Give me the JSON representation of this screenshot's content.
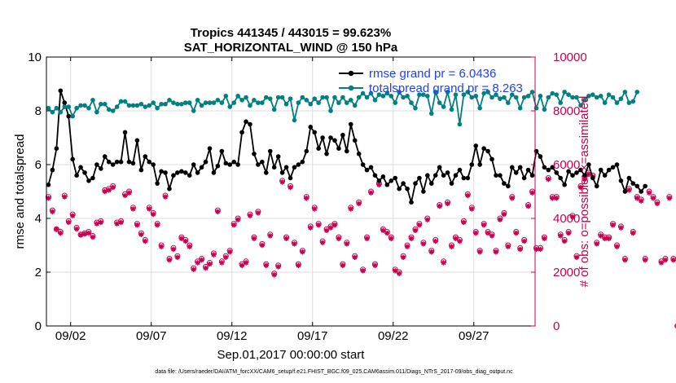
{
  "chart_data": {
    "type": "line",
    "title_line1": "Tropics 441345 / 443015 = 99.623%",
    "title_line2": "SAT_HORIZONTAL_WIND @ 150 hPa",
    "xlabel": "Sep.01,2017 00:00:00 start",
    "ylabel_left": "rmse and totalspread",
    "ylabel_right": "# of obs: o=possible; ×=assimilated",
    "footer": "data file: /Users/raeder/DAI/ATM_forcXX/CAM6_setup/f.e21.FHIST_BGC.f09_025.CAM6assim.011/Diags_NTrS_2017-09/obs_diag_output.nc",
    "xlim": [
      0.5,
      30.8
    ],
    "ylim_left": [
      0,
      10
    ],
    "ylim_right": [
      0,
      10000
    ],
    "x_ticks": [
      2,
      7,
      12,
      17,
      22,
      27
    ],
    "x_tick_labels": [
      "09/02",
      "09/07",
      "09/12",
      "09/17",
      "09/22",
      "09/27"
    ],
    "y_ticks_left": [
      "0",
      "2",
      "4",
      "6",
      "8",
      "10"
    ],
    "y_ticks_right": [
      "0",
      "2000",
      "4000",
      "6000",
      "8000",
      "10000"
    ],
    "legend": [
      "rmse grand pr = 6.0436",
      "totalspread grand pr = 8.263"
    ],
    "colors": {
      "rmse": "#000000",
      "spread": "#008080",
      "obs": "#c8004f",
      "grid": "#dddddd"
    },
    "series": [
      {
        "name": "rmse grand pr = 6.0436",
        "axis": "left",
        "x_start": 0.625,
        "dx": 0.25,
        "values": [
          5.25,
          5.8,
          6.6,
          8.75,
          8.3,
          7.8,
          6.2,
          5.6,
          5.9,
          5.7,
          5.4,
          5.5,
          6.0,
          5.85,
          6.3,
          6.1,
          6.0,
          6.1,
          6.1,
          7.2,
          6.1,
          6.05,
          6.9,
          5.8,
          6.3,
          6.1,
          6.0,
          5.3,
          5.75,
          5.7,
          5.1,
          5.6,
          5.7,
          5.75,
          5.7,
          5.6,
          6.0,
          5.7,
          5.9,
          6.1,
          6.6,
          5.7,
          5.95,
          6.5,
          6.05,
          6.0,
          6.1,
          6.0,
          7.2,
          7.6,
          7.5,
          6.4,
          6.0,
          6.1,
          5.7,
          6.5,
          5.9,
          6.3,
          5.7,
          5.9,
          5.5,
          5.9,
          6.0,
          6.1,
          6.5,
          7.4,
          7.2,
          6.6,
          7.0,
          6.4,
          7.0,
          6.9,
          6.6,
          7.1,
          6.5,
          7.5,
          6.9,
          6.4,
          6.0,
          5.8,
          5.9,
          5.6,
          5.4,
          5.55,
          5.25,
          5.4,
          5.5,
          5.1,
          5.3,
          5.1,
          4.6,
          5.3,
          5.5,
          5.0,
          5.6,
          5.3,
          5.6,
          5.9,
          5.6,
          5.7,
          5.3,
          5.6,
          5.8,
          5.5,
          5.5,
          6.0,
          6.7,
          6.0,
          6.6,
          6.5,
          6.2,
          5.6,
          5.6,
          5.3,
          5.2,
          5.9,
          5.7,
          5.9,
          5.5,
          5.8,
          5.6,
          6.5,
          6.3,
          5.9,
          5.8,
          5.9,
          5.7,
          5.5,
          5.25,
          5.75,
          5.6,
          5.7,
          5.8,
          5.6,
          6.0,
          5.5,
          5.2,
          5.8,
          5.6,
          5.8,
          5.9,
          6.0,
          5.4,
          5.0,
          5.5,
          5.3,
          5.2,
          5.0,
          5.2
        ]
      },
      {
        "name": "totalspread grand pr = 8.263",
        "axis": "left",
        "x_start": 0.625,
        "dx": 0.25,
        "values": [
          8.1,
          7.95,
          8.1,
          7.95,
          8.15,
          8.15,
          7.8,
          8.1,
          8.2,
          8.2,
          8.1,
          8.4,
          7.95,
          8.25,
          8.25,
          8.05,
          8.0,
          8.15,
          8.35,
          8.35,
          8.2,
          8.2,
          8.2,
          8.25,
          8.15,
          8.2,
          8.3,
          8.1,
          8.25,
          8.25,
          8.4,
          8.3,
          8.25,
          8.25,
          8.3,
          8.3,
          8.0,
          8.4,
          8.2,
          8.3,
          8.3,
          8.3,
          8.4,
          8.3,
          8.55,
          8.15,
          8.3,
          8.55,
          8.4,
          8.5,
          8.2,
          8.4,
          8.3,
          8.3,
          8.5,
          8.45,
          8.05,
          8.5,
          8.5,
          8.25,
          8.45,
          7.65,
          8.3,
          8.5,
          8.4,
          8.25,
          8.45,
          8.3,
          8.5,
          8.5,
          8.0,
          8.5,
          8.3,
          8.5,
          8.3,
          8.4,
          8.2,
          8.5,
          8.65,
          8.5,
          8.65,
          8.4,
          8.6,
          8.55,
          8.65,
          8.55,
          8.3,
          8.7,
          8.5,
          8.55,
          8.3,
          8.1,
          8.6,
          8.6,
          8.55,
          7.9,
          8.7,
          8.3,
          8.15,
          8.7,
          8.05,
          8.6,
          7.5,
          8.6,
          8.7,
          8.5,
          8.55,
          8.1,
          8.65,
          8.7,
          8.5,
          8.6,
          8.45,
          8.5,
          8.3,
          8.6,
          8.5,
          8.1,
          8.5,
          8.55,
          8.7,
          8.1,
          8.55,
          8.05,
          8.5,
          8.65,
          8.6,
          8.3,
          8.7,
          8.6,
          8.5,
          8.5,
          8.2,
          8.4,
          8.55,
          8.6,
          8.5,
          8.55,
          8.3,
          8.6,
          8.5,
          8.3,
          8.45,
          8.7,
          8.3,
          8.35,
          8.7
        ]
      },
      {
        "name": "# of obs possible",
        "axis": "right",
        "marker": "circle",
        "x_start": 0.625,
        "dx": 0.25,
        "values": [
          4800,
          4300,
          3600,
          3500,
          4850,
          3900,
          4150,
          3650,
          3400,
          3450,
          3500,
          3350,
          3850,
          3900,
          5050,
          5100,
          5200,
          3850,
          3900,
          4900,
          5000,
          4400,
          3800,
          3450,
          3200,
          4400,
          4200,
          3800,
          3000,
          4850,
          2500,
          2900,
          2600,
          3300,
          3200,
          3000,
          2150,
          2400,
          2500,
          2200,
          2350,
          2700,
          4300,
          2400,
          2600,
          2800,
          3800,
          4000,
          2300,
          2400,
          4150,
          3300,
          4250,
          3050,
          2300,
          3400,
          1950,
          2250,
          5400,
          3300,
          5200,
          3100,
          2300,
          2800,
          4800,
          3700,
          4400,
          3800,
          3150,
          3600,
          3700,
          3800,
          3300,
          2300,
          3100,
          4400,
          2600,
          4600,
          2100,
          3300,
          5000,
          2300,
          5300,
          3600,
          3500,
          3300,
          2100,
          2000,
          2600,
          3000,
          3300,
          3600,
          3800,
          3100,
          4000,
          2800,
          3200,
          4500,
          2400,
          4600,
          3000,
          3300,
          3200,
          3900,
          4900,
          4400,
          3500,
          2800,
          3800,
          3500,
          3400,
          2800,
          4000,
          4200,
          3000,
          4800,
          3500,
          2900,
          3200,
          4500,
          5000,
          2900,
          2900,
          3300,
          5500,
          4800,
          4800,
          3400,
          3200,
          3500,
          4100,
          2600,
          5200,
          5500,
          5700,
          5600,
          3100,
          3400,
          3300,
          3300,
          3800,
          3000,
          3700,
          2500,
          5100,
          3500,
          4800,
          4700,
          2500,
          5000,
          4800,
          4600,
          2400,
          2500,
          4800,
          2500,
          0
        ]
      },
      {
        "name": "# of obs assimilated",
        "axis": "right",
        "marker": "star",
        "x_start": 0.625,
        "dx": 0.25,
        "values": [
          4750,
          4250,
          3600,
          3450,
          4800,
          3850,
          4100,
          3600,
          3380,
          3420,
          3450,
          3300,
          3800,
          3850,
          5000,
          5050,
          5150,
          3800,
          3850,
          4850,
          4950,
          4350,
          3750,
          3400,
          3150,
          4350,
          4150,
          3750,
          2950,
          4800,
          2450,
          2850,
          2550,
          3250,
          3150,
          2950,
          2100,
          2350,
          2450,
          2150,
          2300,
          2650,
          4250,
          2350,
          2550,
          2750,
          3750,
          3950,
          2250,
          2350,
          4100,
          3250,
          4200,
          3000,
          2250,
          3350,
          1900,
          2200,
          5350,
          3250,
          5150,
          3050,
          2250,
          2750,
          4750,
          3650,
          4350,
          3750,
          3100,
          3550,
          3650,
          3750,
          3250,
          2250,
          3050,
          4350,
          2550,
          4550,
          2050,
          3250,
          4950,
          2250,
          5250,
          3550,
          3450,
          3250,
          2050,
          1950,
          2550,
          2950,
          3250,
          3550,
          3750,
          3050,
          3950,
          2750,
          3150,
          4450,
          2350,
          4550,
          2950,
          3250,
          3150,
          3850,
          4850,
          4350,
          3450,
          2750,
          3750,
          3450,
          3350,
          2750,
          3950,
          4150,
          2950,
          4750,
          3450,
          2850,
          3150,
          4450,
          4950,
          2850,
          2850,
          3250,
          5450,
          4750,
          4750,
          3350,
          3150,
          3450,
          4050,
          2550,
          5150,
          5450,
          5650,
          5550,
          3050,
          3350,
          3250,
          3250,
          3750,
          2950,
          3650,
          2450,
          5050,
          3450,
          4750,
          4650,
          2450,
          4950,
          4750,
          4550,
          2350,
          2450,
          4750,
          2450,
          0
        ]
      }
    ]
  }
}
